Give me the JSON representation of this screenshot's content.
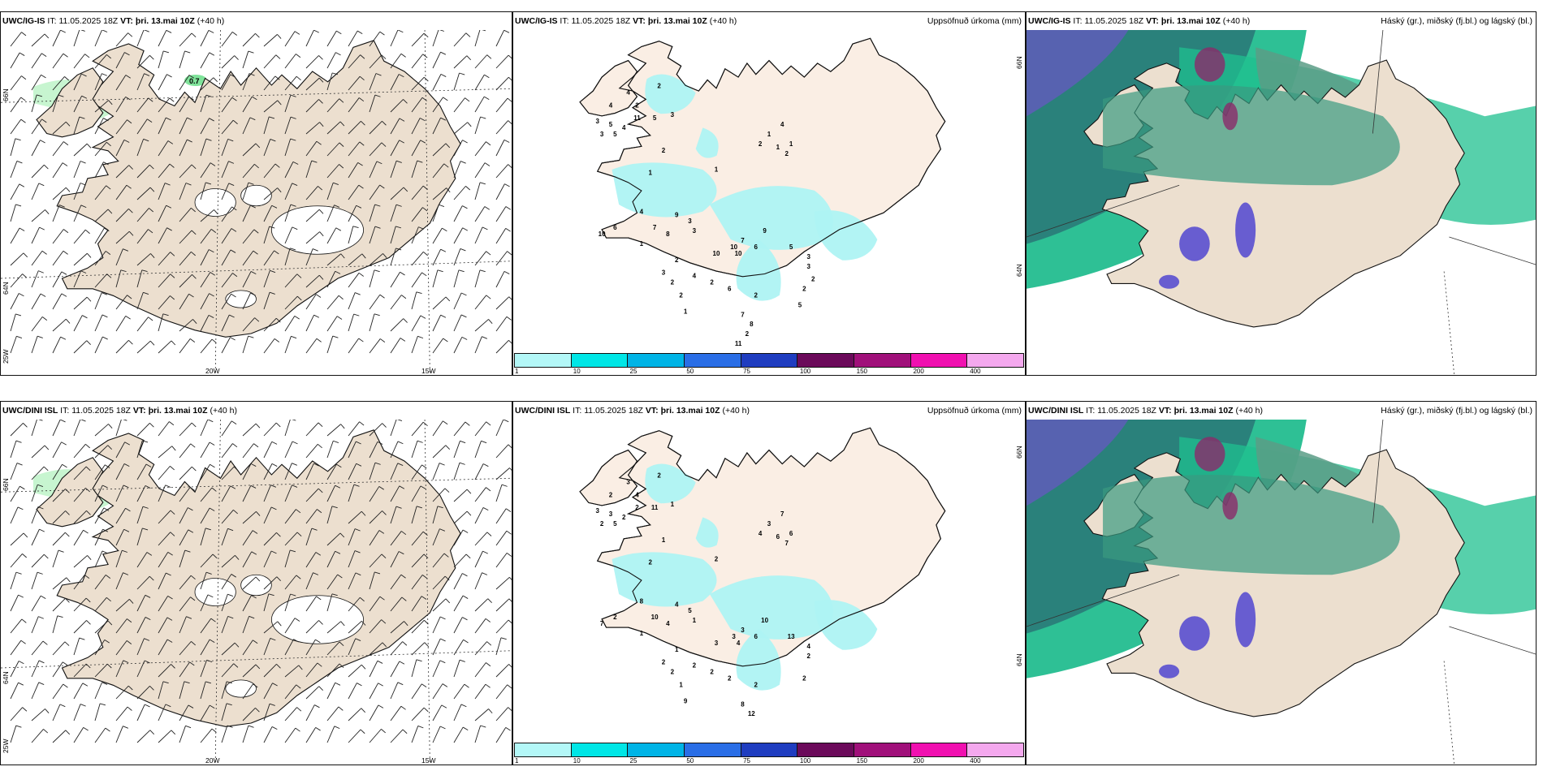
{
  "rows": [
    {
      "model": "UWC/IG-IS",
      "it_label": "IT:",
      "it_value": "11.05.2025 18Z",
      "vt_label": "VT:",
      "vt_value": "þri. 13.mai 10Z",
      "lead": "(+40 h)",
      "wind_panel": {
        "lon_labels": [
          "20W",
          "15W"
        ],
        "lat_labels": [
          "66N",
          "64N",
          "25W"
        ],
        "highlight_value": "0.7"
      },
      "precip_panel": {
        "title_right": "Uppsöfnuð úrkoma (mm)",
        "lat_labels": [
          "66N",
          "64N"
        ],
        "numbers": [
          "2",
          "4",
          "2",
          "3",
          "5",
          "3",
          "4",
          "11",
          "5",
          "3",
          "4",
          "5",
          "2",
          "1",
          "1",
          "2",
          "1",
          "4",
          "1",
          "2",
          "1",
          "4",
          "6",
          "7",
          "9",
          "10",
          "8",
          "3",
          "3",
          "1",
          "9",
          "10",
          "7",
          "10",
          "10",
          "6",
          "3",
          "4",
          "2",
          "2",
          "2",
          "3",
          "3",
          "5",
          "6",
          "2",
          "2",
          "1",
          "2",
          "7",
          "8",
          "2",
          "11",
          "2",
          "5"
        ]
      },
      "cloud_panel": {
        "title_right": "Háský (gr.), miðský (fj.bl.) og lágský (bl.)"
      }
    },
    {
      "model": "UWC/DINI ISL",
      "it_label": "IT:",
      "it_value": "11.05.2025 18Z",
      "vt_label": "VT:",
      "vt_value": "þri. 13.mai 10Z",
      "lead": "(+40 h)",
      "wind_panel": {
        "lon_labels": [
          "20W",
          "15W"
        ],
        "lat_labels": [
          "66N",
          "64N",
          "25W"
        ]
      },
      "precip_panel": {
        "title_right": "Uppsöfnuð úrkoma (mm)",
        "lat_labels": [
          "66N",
          "64N"
        ],
        "numbers": [
          "2",
          "3",
          "4",
          "3",
          "3",
          "2",
          "2",
          "2",
          "11",
          "1",
          "2",
          "5",
          "1",
          "2",
          "2",
          "4",
          "3",
          "7",
          "6",
          "7",
          "6",
          "8",
          "2",
          "10",
          "4",
          "7",
          "4",
          "1",
          "5",
          "1",
          "10",
          "3",
          "3",
          "4",
          "3",
          "6",
          "2",
          "2",
          "2",
          "2",
          "1",
          "2",
          "4",
          "13",
          "2",
          "2",
          "1",
          "9",
          "2",
          "8",
          "12"
        ]
      },
      "cloud_panel": {
        "title_right": "Háský (gr.), miðský (fj.bl.) og lágský (bl.)"
      }
    }
  ],
  "colorbar": {
    "ticks": [
      "1",
      "10",
      "25",
      "50",
      "75",
      "100",
      "150",
      "200",
      "400"
    ],
    "colors": [
      "#b3f7f7",
      "#00e6e6",
      "#00b4e6",
      "#2a6ee6",
      "#1f3dc0",
      "#6b0a5a",
      "#a0107a",
      "#f010b0",
      "#f4a8ee"
    ]
  },
  "colors": {
    "land": "#ecdfcf",
    "land_light": "#faeee4",
    "precip": "#aef3f3",
    "coast": "#111111",
    "cloud_high": "#3aa77a",
    "cloud_mid": "#5a4fcf",
    "cloud_low": "#1ea5a0"
  }
}
